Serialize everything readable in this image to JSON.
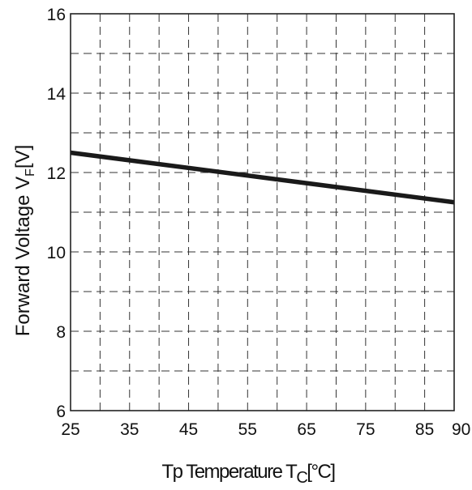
{
  "chart_data": {
    "type": "line",
    "xlabel": "Tp Temperature T",
    "xlabel_sub": "C",
    "xlabel_unit": "[°C]",
    "ylabel": "Forward Voltage V",
    "ylabel_sub": "F",
    "ylabel_unit": "[V]",
    "xlim": [
      25,
      90
    ],
    "ylim": [
      6,
      16
    ],
    "x_ticks": [
      25,
      35,
      45,
      55,
      65,
      75,
      85,
      90
    ],
    "y_ticks": [
      6,
      8,
      10,
      12,
      14,
      16
    ],
    "grid": true,
    "grid_style": "dashed",
    "series": [
      {
        "x": [
          25,
          90
        ],
        "y": [
          12.5,
          11.25
        ]
      }
    ],
    "colors": {
      "line": "#1a1a1a",
      "frame": "#222222",
      "grid": "#333333"
    }
  }
}
